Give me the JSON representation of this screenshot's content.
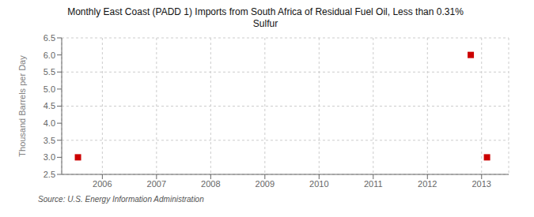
{
  "chart_data": {
    "type": "scatter",
    "title": "Monthly East Coast (PADD 1) Imports from South Africa of Residual Fuel Oil, Less than 0.31%\nSulfur",
    "y_label": "Thousand Barrels per Day",
    "source": "Source: U.S. Energy Information Administration",
    "x": [
      2005.55,
      2012.8,
      2013.1
    ],
    "values": [
      3.0,
      6.0,
      3.0
    ],
    "color": "#CC0000",
    "marker": "square",
    "xlim": [
      2005.25,
      2013.5
    ],
    "ylim": [
      2.5,
      6.5
    ],
    "xticks": [
      2006,
      2007,
      2008,
      2009,
      2010,
      2011,
      2012,
      2013
    ],
    "yticks": [
      2.5,
      {
        "value": 3,
        "label": "3.0"
      },
      3.5,
      {
        "value": 4,
        "label": "4.0"
      },
      4.5,
      {
        "value": 5,
        "label": "5.0"
      },
      5.5,
      {
        "value": 6,
        "label": "6.0"
      },
      6.5
    ],
    "grid": true
  }
}
